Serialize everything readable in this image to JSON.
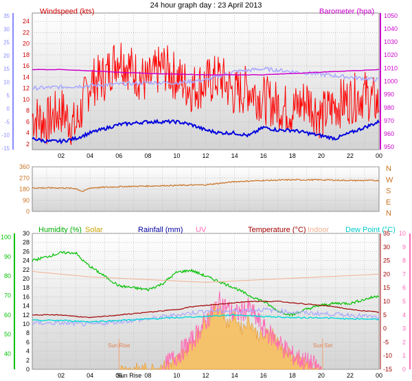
{
  "title": "24 hour graph day : 23 April 2013",
  "colors": {
    "wind": "#ff0000",
    "gust": "#ff0000",
    "baro": "#cc00cc",
    "winddir": "#c87020",
    "humidity": "#00c000",
    "solar": "#c8a000",
    "rainfall": "#0000a0",
    "uv": "#ff69b4",
    "temperature": "#a00000",
    "indoor": "#f0b090",
    "dewpoint": "#00d8d8",
    "axis_blue": "#8888ff",
    "temp_feel": "#a8a8ff",
    "solar_fill": "#f8c060"
  },
  "chart_data": [
    {
      "type": "line",
      "title": "24 hour graph day : 23 April 2013",
      "series": [
        {
          "name": "Windspeed (kts)",
          "axis": "left",
          "x": [
            0,
            1,
            2,
            3,
            3.5,
            4,
            5,
            6,
            7,
            8,
            9,
            10,
            11,
            12,
            13,
            14,
            15,
            16,
            17,
            18,
            19,
            20,
            21,
            22,
            23,
            24
          ],
          "values": [
            5,
            4,
            6,
            3,
            7,
            11,
            12,
            16,
            13,
            11,
            14,
            12,
            10,
            11,
            12,
            9,
            10,
            8,
            7,
            6,
            8,
            5,
            7,
            8,
            9,
            7
          ]
        },
        {
          "name": "Barometer (hpa)",
          "axis": "right",
          "x": [
            0,
            2,
            4,
            6,
            8,
            10,
            12,
            14,
            16,
            18,
            20,
            22,
            24
          ],
          "values": [
            1009,
            1009,
            1008,
            1007,
            1006,
            1005.5,
            1005,
            1005,
            1005,
            1006,
            1007,
            1008,
            1009
          ]
        }
      ],
      "left_axis": {
        "label": "Windspeed (kts)",
        "ticks": [
          "2",
          "4",
          "6",
          "8",
          "10",
          "12",
          "14",
          "16",
          "18",
          "20",
          "22",
          "24"
        ],
        "ylim": [
          1,
          25.5
        ]
      },
      "outer_axis": {
        "ticks": [
          "35",
          "30",
          "25",
          "20",
          "15",
          "10",
          "5",
          "0",
          "-5",
          "-10",
          "-15"
        ]
      },
      "right_axis": {
        "label": "Barometer (hpa)",
        "ticks": [
          "950",
          "960",
          "970",
          "980",
          "990",
          "1000",
          "1010",
          "1020",
          "1030",
          "1040",
          "1050"
        ],
        "ylim": [
          948,
          1052
        ]
      },
      "xticks": [
        "02",
        "04",
        "06",
        "08",
        "10",
        "12",
        "14",
        "16",
        "18",
        "20",
        "22",
        "00"
      ]
    },
    {
      "type": "line",
      "series": [
        {
          "name": "Wind direction",
          "x": [
            0,
            2,
            3,
            3.5,
            4,
            6,
            8,
            10,
            12,
            14,
            16,
            18,
            20,
            22,
            24
          ],
          "values": [
            190,
            190,
            185,
            160,
            190,
            200,
            205,
            210,
            215,
            240,
            250,
            255,
            255,
            250,
            250
          ]
        }
      ],
      "left_axis": {
        "ticks": [
          "0",
          "90",
          "180",
          "270",
          "360"
        ],
        "ylim": [
          0,
          360
        ]
      },
      "right_axis": {
        "ticks": [
          "N",
          "E",
          "S",
          "W",
          "N"
        ]
      },
      "xticks": [
        "02",
        "04",
        "06",
        "08",
        "10",
        "12",
        "14",
        "16",
        "18",
        "20",
        "22",
        "00"
      ]
    },
    {
      "type": "line",
      "legend": [
        "Humidity (%)",
        "Solar",
        "Rainfall (mm)",
        "UV",
        "Temperature (°C)",
        "Indoor",
        "Dew Point (°C)"
      ],
      "series": [
        {
          "name": "Humidity (%)",
          "axis": "humidity",
          "x": [
            0,
            1,
            2,
            3,
            3.5,
            4,
            5,
            6,
            7,
            8,
            9,
            10,
            11,
            12,
            13,
            14,
            15,
            16,
            17,
            18,
            19,
            20,
            21,
            22,
            23,
            24
          ],
          "values": [
            88,
            90,
            92,
            92,
            88,
            85,
            80,
            75,
            74,
            73,
            76,
            82,
            83,
            80,
            77,
            74,
            70,
            67,
            62,
            60,
            63,
            65,
            66,
            66,
            68,
            70
          ]
        },
        {
          "name": "Temperature (°C)",
          "axis": "temperature",
          "x": [
            0,
            2,
            4,
            6,
            8,
            10,
            11,
            12,
            13,
            14,
            15,
            16,
            17,
            18,
            19,
            20,
            21,
            22,
            23,
            24
          ],
          "values": [
            5,
            5,
            4,
            5,
            6,
            7,
            8,
            8.5,
            9,
            9.5,
            10,
            10,
            10,
            9.5,
            9,
            8.5,
            8,
            7,
            6.5,
            6
          ]
        },
        {
          "name": "Indoor",
          "axis": "temperature",
          "x": [
            0,
            4,
            8,
            12,
            16,
            20,
            24
          ],
          "values": [
            21,
            19,
            18,
            17,
            18,
            19,
            20
          ]
        },
        {
          "name": "Dew Point (°C)",
          "axis": "temperature",
          "x": [
            0,
            2,
            4,
            6,
            8,
            10,
            12,
            14,
            16,
            18,
            20,
            22,
            24
          ],
          "values": [
            3,
            3,
            2.5,
            3,
            3.5,
            4,
            4.5,
            5,
            4.5,
            4,
            4,
            3.5,
            3.5
          ]
        },
        {
          "name": "Solar",
          "axis": "solar",
          "x": [
            6,
            8,
            9,
            10,
            10.5,
            11,
            11.5,
            12,
            12.5,
            13,
            13.5,
            14,
            14.5,
            15,
            15.5,
            16,
            16.5,
            17,
            17.5,
            18,
            18.5,
            19,
            19.5,
            20
          ],
          "values": [
            0,
            0,
            0.5,
            2,
            4,
            6,
            8,
            11,
            13,
            14,
            10,
            12,
            9,
            11,
            8,
            7,
            9,
            6,
            4,
            3,
            2,
            1,
            0.5,
            0
          ]
        },
        {
          "name": "UV",
          "axis": "uv",
          "x": [
            9,
            10,
            11,
            12,
            13,
            14,
            15,
            16,
            17,
            18,
            19,
            20
          ],
          "values": [
            0,
            1,
            2,
            3.5,
            5,
            4,
            4.5,
            3,
            2,
            1,
            0.5,
            0
          ]
        }
      ],
      "axes": {
        "humidity": {
          "label": "Humidity (%)",
          "ticks": [
            "40",
            "50",
            "60",
            "70",
            "80",
            "90",
            "100"
          ],
          "ylim": [
            32,
            102
          ]
        },
        "rainfall": {
          "label": "Rainfall (mm)",
          "ticks": [
            "0",
            "2",
            "4",
            "6",
            "8",
            "10",
            "12",
            "14",
            "16",
            "18",
            "20",
            "22",
            "24",
            "26",
            "28",
            "30"
          ],
          "ylim": [
            0,
            30
          ]
        },
        "temperature": {
          "label": "Temperature (°C)",
          "ticks": [
            "-15",
            "-10",
            "-5",
            "0",
            "5",
            "10",
            "15",
            "20",
            "25",
            "30",
            "35"
          ],
          "ylim": [
            -15,
            35
          ]
        },
        "uv": {
          "label": "UV",
          "ticks": [
            "0",
            "1",
            "2",
            "3",
            "4",
            "5",
            "6",
            "7",
            "8",
            "9",
            "10"
          ],
          "ylim": [
            0,
            10
          ]
        },
        "solar": {
          "ylim": [
            0,
            30
          ]
        }
      },
      "annotations": [
        {
          "text": "Sun Rise",
          "x": 6.0
        },
        {
          "text": "Sun Set",
          "x": 20.1
        }
      ],
      "xticks": [
        "02",
        "04",
        "06",
        "08",
        "10",
        "12",
        "14",
        "16",
        "18",
        "20",
        "22",
        "00"
      ],
      "xtick_extra": "Sun Rise"
    }
  ]
}
